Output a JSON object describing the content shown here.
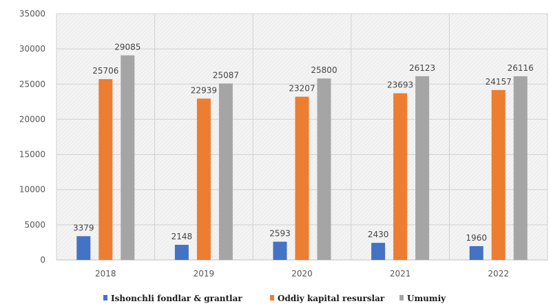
{
  "chart_data": {
    "type": "bar",
    "categories": [
      "2018",
      "2019",
      "2020",
      "2021",
      "2022"
    ],
    "series": [
      {
        "name": "Ishonchli fondlar & grantlar",
        "values": [
          3379,
          2148,
          2593,
          2430,
          1960
        ],
        "color": "#4472c4"
      },
      {
        "name": "Oddiy kapital resurslar",
        "values": [
          25706,
          22939,
          23207,
          23693,
          24157
        ],
        "color": "#ed7d31"
      },
      {
        "name": "Umumiy",
        "values": [
          29085,
          25087,
          25800,
          26123,
          26116
        ],
        "color": "#a5a5a5"
      }
    ],
    "ylim": [
      0,
      35000
    ],
    "yticks": [
      "0",
      "5000",
      "10000",
      "15000",
      "20000",
      "25000",
      "30000",
      "35000"
    ],
    "grid": true,
    "legend_position": "bottom"
  }
}
